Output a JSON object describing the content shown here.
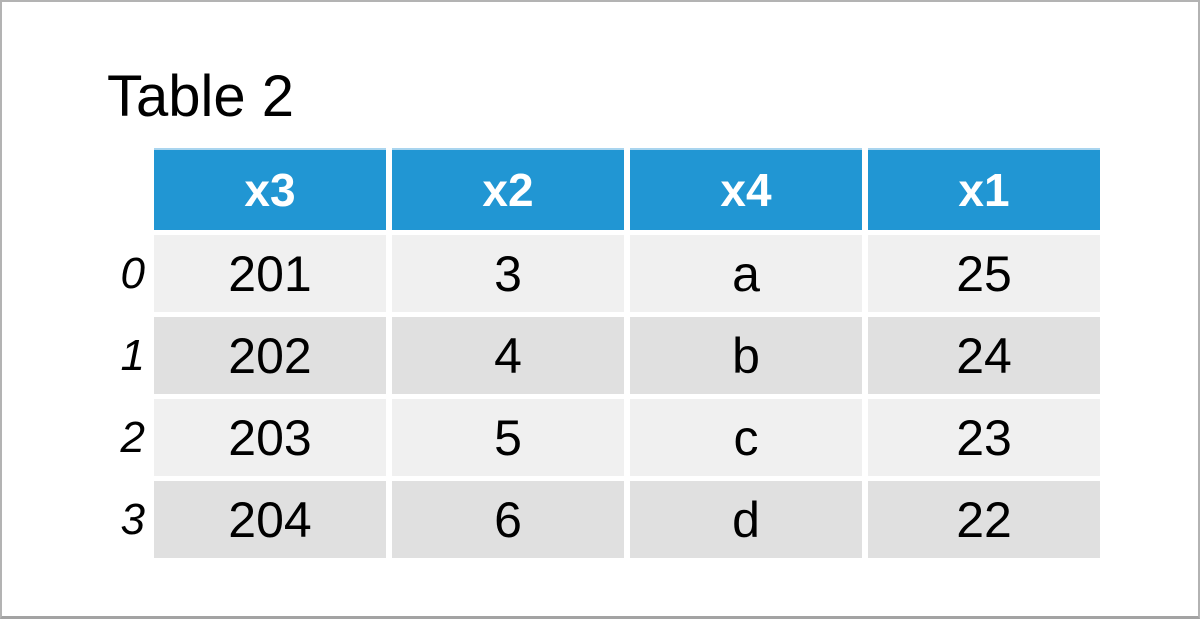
{
  "title": "Table 2",
  "chart_data": {
    "type": "table",
    "title": "Table 2",
    "columns": [
      "x3",
      "x2",
      "x4",
      "x1"
    ],
    "index": [
      "0",
      "1",
      "2",
      "3"
    ],
    "rows": [
      [
        "201",
        "3",
        "a",
        "25"
      ],
      [
        "202",
        "4",
        "b",
        "24"
      ],
      [
        "203",
        "5",
        "c",
        "23"
      ],
      [
        "204",
        "6",
        "d",
        "22"
      ]
    ]
  },
  "colors": {
    "header_bg": "#2196d3",
    "header_text": "#ffffff",
    "header_hairline": "#a9d5ef",
    "row_light": "#f0f0f0",
    "row_dark": "#e0e0e0",
    "frame_border": "#b3b3b3",
    "text": "#000000",
    "canvas_bg": "#ffffff"
  }
}
